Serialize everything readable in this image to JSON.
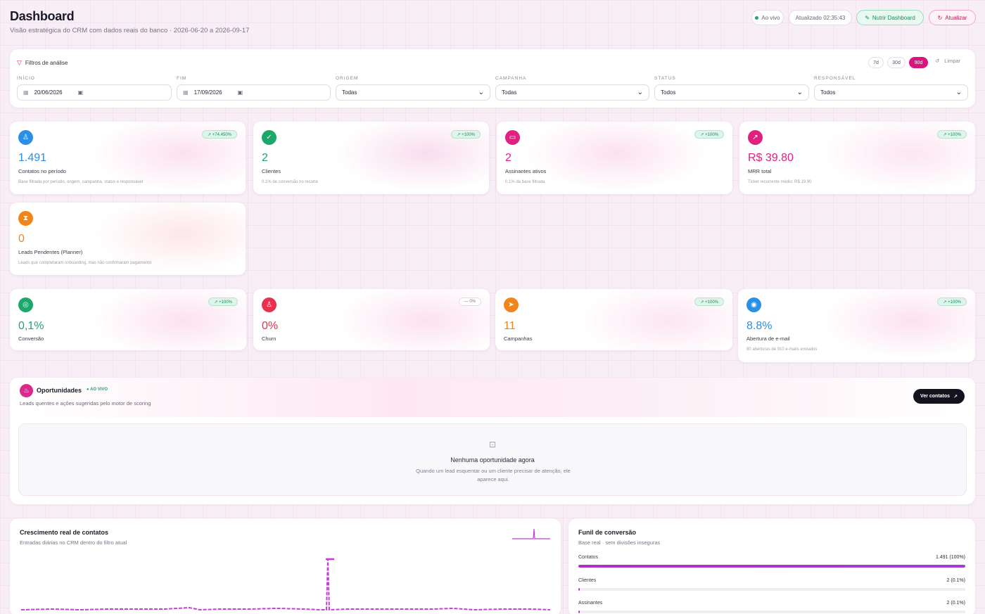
{
  "header": {
    "title": "Dashboard",
    "subtitle": "Visão estratégica do CRM com dados reais do banco · 2026-06-20 a 2026-09-17",
    "live_label": "Ao vivo",
    "updated_label": "Atualizado 02:35:43",
    "feed_label": "Nutrir Dashboard",
    "refresh_label": "Atualizar"
  },
  "filters": {
    "title": "Filtros de análise",
    "ranges": [
      "7d",
      "30d",
      "90d"
    ],
    "active_range": "90d",
    "clear_label": "Limpar",
    "start_label": "INÍCIO",
    "start_value": "20/06/2026",
    "end_label": "FIM",
    "end_value": "17/09/2026",
    "origin_label": "ORIGEM",
    "origin_value": "Todas",
    "campaign_label": "CAMPANHA",
    "campaign_value": "Todas",
    "status_label": "STATUS",
    "status_value": "Todos",
    "owner_label": "RESPONSÁVEL",
    "owner_value": "Todos"
  },
  "kpis": [
    {
      "icon": "user-icon",
      "glyph": "♙",
      "color": "#2b8fe6",
      "value": "1.491",
      "label": "Contatos no período",
      "hint": "Base filtrada por período, origem, campanha, status e responsável",
      "badge": "↗ +74.450%",
      "badge_style": "up"
    },
    {
      "icon": "user-check-icon",
      "glyph": "✓",
      "color": "#1aa86b",
      "value": "2",
      "label": "Clientes",
      "hint": "0.1% de conversão no recorte",
      "badge": "↗ +100%",
      "badge_style": "up"
    },
    {
      "icon": "card-icon",
      "glyph": "▭",
      "color": "#e0217f",
      "value": "2",
      "label": "Assinantes ativos",
      "hint": "0.1% da base filtrada",
      "badge": "↗ +100%",
      "badge_style": "up"
    },
    {
      "icon": "trend-up-icon",
      "glyph": "↗",
      "color": "#e0217f",
      "value": "R$ 39.80",
      "label": "MRR total",
      "hint": "Ticket recorrente médio: R$ 19.90",
      "badge": "↗ +100%",
      "badge_style": "up"
    },
    {
      "icon": "hourglass-icon",
      "glyph": "⧗",
      "color": "#f28519",
      "value": "0",
      "label": "Leads Pendentes (Planner)",
      "hint": "Leads que completaram onboarding, mas não confirmaram pagamento",
      "badge": "",
      "badge_style": "none"
    }
  ],
  "metrics": [
    {
      "icon": "target-icon",
      "glyph": "◎",
      "color": "#1aa86b",
      "value": "0,1%",
      "label": "Conversão",
      "hint": "",
      "badge": "↗ +100%",
      "badge_style": "up"
    },
    {
      "icon": "user-minus-icon",
      "glyph": "♙",
      "color": "#e8314f",
      "value": "0%",
      "label": "Churn",
      "hint": "",
      "badge": "— 0%",
      "badge_style": "neutral"
    },
    {
      "icon": "megaphone-icon",
      "glyph": "➤",
      "color": "#f28519",
      "value": "11",
      "label": "Campanhas",
      "hint": "",
      "badge": "↗ +100%",
      "badge_style": "up"
    },
    {
      "icon": "eye-icon",
      "glyph": "◉",
      "color": "#2b8fe6",
      "value": "8.8%",
      "label": "Abertura de e-mail",
      "hint": "80 aberturas de 910 e-mails enviados",
      "badge": "↗ +100%",
      "badge_style": "up"
    }
  ],
  "opportunities": {
    "title": "Oportunidades",
    "live_label": "● AO VIVO",
    "subtitle": "Leads quentes e ações sugeridas pelo motor de scoring",
    "view_label": "Ver contatos",
    "empty_title": "Nenhuma oportunidade agora",
    "empty_desc": "Quando um lead esquentar ou um cliente precisar de atenção, ele aparece aqui."
  },
  "growth": {
    "title": "Crescimento real de contatos",
    "subtitle": "Entradas diárias no CRM dentro do filtro atual"
  },
  "funnel": {
    "title": "Funil de conversão",
    "subtitle": "Base real · sem divisões inseguras",
    "rows": [
      {
        "label": "Contatos",
        "value": "1.491 (100%)",
        "pct": 1.0
      },
      {
        "label": "Clientes",
        "value": "2 (0.1%)",
        "pct": 0.001
      },
      {
        "label": "Assinantes",
        "value": "2 (0.1%)",
        "pct": 0.001
      }
    ]
  },
  "colors": {
    "accent": "#d9147c",
    "success": "#1aa86b",
    "dark_button": "#13131f",
    "chart_line": "#c43fd6"
  }
}
